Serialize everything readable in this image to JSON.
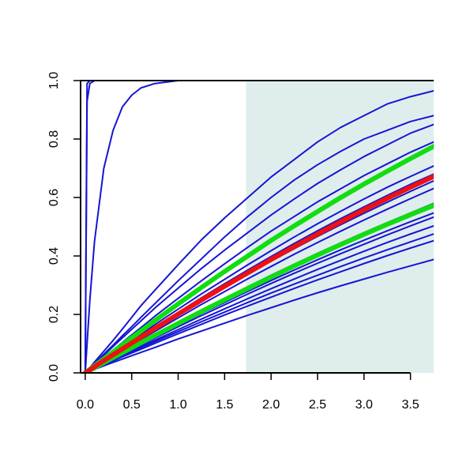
{
  "chart_data": {
    "type": "line",
    "title": "",
    "xlabel": "",
    "ylabel": "",
    "xlim": [
      -0.05,
      3.75
    ],
    "ylim": [
      0.0,
      1.0
    ],
    "x_ticks": [
      "0.0",
      "0.5",
      "1.0",
      "1.5",
      "2.0",
      "2.5",
      "3.0",
      "3.5"
    ],
    "y_ticks": [
      "0.0",
      "0.2",
      "0.4",
      "0.6",
      "0.8",
      "1.0"
    ],
    "grid": false,
    "legend": "none",
    "shaded_region": {
      "x_from": 1.73,
      "x_to": 3.75,
      "color": "#e0eded"
    },
    "colors": {
      "curve": "#1515d6",
      "highlight_mid": "#ee1111",
      "highlight_band": "#11dd11"
    },
    "x": [
      0,
      0.02,
      0.05,
      0.1,
      0.2,
      0.3,
      0.4,
      0.5,
      0.6,
      0.75,
      1.0,
      1.25,
      1.5,
      1.75,
      2.0,
      2.25,
      2.5,
      2.75,
      3.0,
      3.25,
      3.5,
      3.75
    ],
    "series": [
      {
        "values": [
          0,
          0.99,
          1,
          1,
          1,
          1,
          1,
          1,
          1,
          1,
          1,
          1,
          1,
          1,
          1,
          1,
          1,
          1,
          1,
          1,
          1,
          1
        ]
      },
      {
        "values": [
          0,
          0.93,
          0.99,
          1,
          1,
          1,
          1,
          1,
          1,
          1,
          1,
          1,
          1,
          1,
          1,
          1,
          1,
          1,
          1,
          1,
          1,
          1
        ]
      },
      {
        "values": [
          0,
          0.1,
          0.25,
          0.45,
          0.7,
          0.83,
          0.91,
          0.95,
          0.975,
          0.99,
          1,
          1,
          1,
          1,
          1,
          1,
          1,
          1,
          1,
          1,
          1,
          1
        ]
      },
      {
        "values": [
          0,
          0.006,
          0.016,
          0.032,
          0.064,
          0.095,
          0.127,
          0.158,
          0.19,
          0.237,
          0.315,
          0.39,
          0.465,
          0.535,
          0.6,
          0.66,
          0.712,
          0.758,
          0.8,
          0.83,
          0.86,
          0.88
        ]
      },
      {
        "values": [
          0,
          0.007,
          0.018,
          0.037,
          0.074,
          0.111,
          0.15,
          0.19,
          0.23,
          0.283,
          0.37,
          0.455,
          0.53,
          0.6,
          0.67,
          0.73,
          0.79,
          0.84,
          0.88,
          0.92,
          0.945,
          0.965
        ]
      },
      {
        "values": [
          0,
          0.006,
          0.015,
          0.03,
          0.06,
          0.09,
          0.12,
          0.149,
          0.178,
          0.222,
          0.29,
          0.357,
          0.42,
          0.48,
          0.54,
          0.595,
          0.648,
          0.695,
          0.74,
          0.78,
          0.82,
          0.85
        ]
      },
      {
        "values": [
          0,
          0.005,
          0.013,
          0.026,
          0.052,
          0.078,
          0.104,
          0.13,
          0.155,
          0.194,
          0.255,
          0.315,
          0.373,
          0.43,
          0.485,
          0.535,
          0.585,
          0.63,
          0.675,
          0.715,
          0.755,
          0.79
        ]
      },
      {
        "values": [
          0,
          0.004,
          0.011,
          0.022,
          0.044,
          0.066,
          0.088,
          0.11,
          0.132,
          0.165,
          0.218,
          0.27,
          0.32,
          0.37,
          0.418,
          0.465,
          0.51,
          0.553,
          0.595,
          0.635,
          0.672,
          0.708
        ]
      },
      {
        "values": [
          0,
          0.004,
          0.011,
          0.021,
          0.042,
          0.063,
          0.084,
          0.104,
          0.125,
          0.156,
          0.207,
          0.257,
          0.305,
          0.352,
          0.398,
          0.443,
          0.486,
          0.528,
          0.568,
          0.607,
          0.645,
          0.68
        ]
      },
      {
        "values": [
          0,
          0.004,
          0.01,
          0.02,
          0.04,
          0.06,
          0.08,
          0.1,
          0.12,
          0.149,
          0.198,
          0.246,
          0.292,
          0.337,
          0.382,
          0.425,
          0.467,
          0.507,
          0.546,
          0.584,
          0.621,
          0.657
        ]
      },
      {
        "values": [
          0,
          0.004,
          0.01,
          0.019,
          0.038,
          0.057,
          0.076,
          0.095,
          0.114,
          0.142,
          0.188,
          0.234,
          0.278,
          0.322,
          0.364,
          0.406,
          0.446,
          0.485,
          0.523,
          0.56,
          0.596,
          0.631
        ]
      },
      {
        "values": [
          0,
          0.003,
          0.009,
          0.018,
          0.035,
          0.053,
          0.07,
          0.087,
          0.105,
          0.13,
          0.172,
          0.214,
          0.255,
          0.295,
          0.334,
          0.372,
          0.409,
          0.445,
          0.48,
          0.514,
          0.547,
          0.58
        ]
      },
      {
        "values": [
          0,
          0.003,
          0.008,
          0.016,
          0.032,
          0.048,
          0.064,
          0.08,
          0.095,
          0.119,
          0.158,
          0.196,
          0.233,
          0.27,
          0.306,
          0.341,
          0.375,
          0.408,
          0.44,
          0.472,
          0.503,
          0.533
        ]
      },
      {
        "values": [
          0,
          0.003,
          0.008,
          0.015,
          0.03,
          0.045,
          0.06,
          0.075,
          0.09,
          0.112,
          0.148,
          0.184,
          0.219,
          0.254,
          0.288,
          0.321,
          0.354,
          0.385,
          0.416,
          0.446,
          0.475,
          0.503
        ]
      },
      {
        "values": [
          0,
          0.003,
          0.007,
          0.014,
          0.028,
          0.041,
          0.055,
          0.068,
          0.081,
          0.101,
          0.134,
          0.166,
          0.198,
          0.229,
          0.259,
          0.289,
          0.318,
          0.346,
          0.374,
          0.401,
          0.427,
          0.452
        ]
      },
      {
        "values": [
          0,
          0.002,
          0.006,
          0.012,
          0.024,
          0.036,
          0.047,
          0.059,
          0.07,
          0.087,
          0.116,
          0.143,
          0.17,
          0.197,
          0.223,
          0.249,
          0.274,
          0.298,
          0.321,
          0.344,
          0.366,
          0.388
        ]
      },
      {
        "values": [
          0,
          0.003,
          0.009,
          0.017,
          0.034,
          0.051,
          0.067,
          0.084,
          0.1,
          0.124,
          0.163,
          0.203,
          0.241,
          0.279,
          0.316,
          0.352,
          0.387,
          0.421,
          0.454,
          0.486,
          0.517,
          0.547
        ]
      },
      {
        "values": [
          0,
          0.003,
          0.007,
          0.015,
          0.029,
          0.043,
          0.058,
          0.072,
          0.086,
          0.107,
          0.141,
          0.175,
          0.208,
          0.241,
          0.273,
          0.304,
          0.334,
          0.364,
          0.393,
          0.421,
          0.448,
          0.475
        ]
      },
      {
        "color": "highlight_band",
        "width": 6,
        "values": [
          0,
          0.005,
          0.012,
          0.024,
          0.048,
          0.072,
          0.096,
          0.12,
          0.143,
          0.179,
          0.236,
          0.292,
          0.347,
          0.4,
          0.453,
          0.503,
          0.552,
          0.6,
          0.646,
          0.69,
          0.733,
          0.775
        ]
      },
      {
        "color": "highlight_band",
        "width": 6,
        "values": [
          0,
          0.003,
          0.009,
          0.017,
          0.035,
          0.052,
          0.069,
          0.086,
          0.103,
          0.128,
          0.169,
          0.21,
          0.25,
          0.289,
          0.328,
          0.366,
          0.403,
          0.439,
          0.474,
          0.508,
          0.541,
          0.573
        ]
      },
      {
        "color": "highlight_mid",
        "width": 6,
        "values": [
          0,
          0.004,
          0.01,
          0.021,
          0.042,
          0.062,
          0.082,
          0.102,
          0.122,
          0.152,
          0.201,
          0.249,
          0.296,
          0.342,
          0.388,
          0.432,
          0.475,
          0.517,
          0.558,
          0.597,
          0.635,
          0.672
        ]
      }
    ]
  }
}
